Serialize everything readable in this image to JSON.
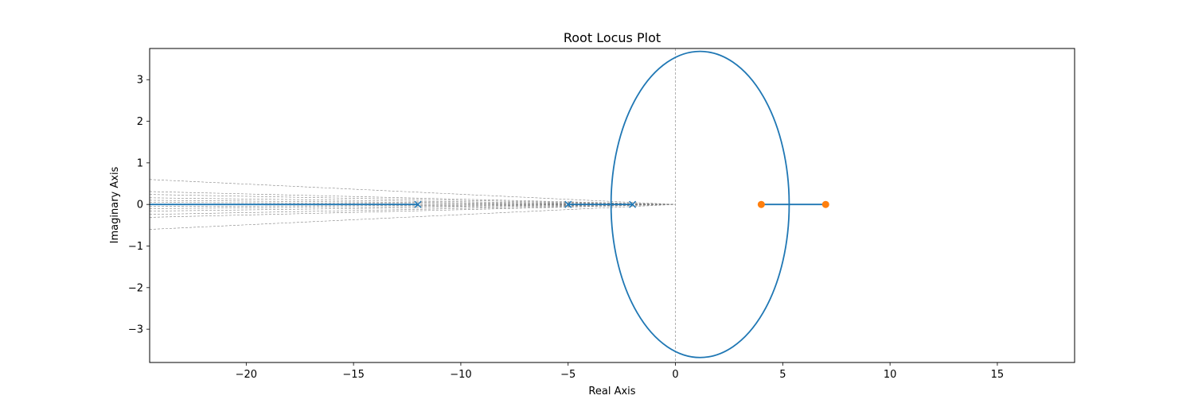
{
  "chart_data": {
    "type": "line",
    "title": "Root Locus Plot",
    "xlabel": "Real Axis",
    "ylabel": "Imaginary Axis",
    "xlim": [
      -24.5,
      18.6
    ],
    "ylim": [
      -3.8,
      3.75
    ],
    "xticks": [
      -20,
      -15,
      -10,
      -5,
      0,
      5,
      10,
      15
    ],
    "yticks": [
      -3,
      -2,
      -1,
      0,
      1,
      2,
      3
    ],
    "grid": false,
    "colors": {
      "locus": "#1f77b4",
      "zeros": "#ff7f0e",
      "guides": "#808080"
    },
    "poles": [
      {
        "x": -12,
        "y": 0
      },
      {
        "x": -5,
        "y": 0
      },
      {
        "x": -2,
        "y": 0
      }
    ],
    "zeros": [
      {
        "x": 4,
        "y": 0
      },
      {
        "x": 7,
        "y": 0
      }
    ],
    "locus_segments": [
      {
        "name": "",
        "x": [
          -24.5,
          -12
        ],
        "y": [
          0,
          0
        ]
      },
      {
        "name": "",
        "x": [
          -5,
          -2
        ],
        "y": [
          0,
          0
        ]
      },
      {
        "name": "",
        "x": [
          4,
          7
        ],
        "y": [
          0,
          0
        ]
      }
    ],
    "locus_ellipse": {
      "center_x": 1.15,
      "center_y": 0,
      "radius_x": 4.15,
      "radius_y": 3.68
    },
    "damping_lines_y_at_xmin": [
      0.6,
      0.31,
      0.24,
      0.16,
      0.1,
      0.05,
      -0.05,
      -0.1,
      -0.16,
      -0.24,
      -0.31,
      -0.6
    ],
    "reference_lines": {
      "vertical_x": 0
    }
  }
}
